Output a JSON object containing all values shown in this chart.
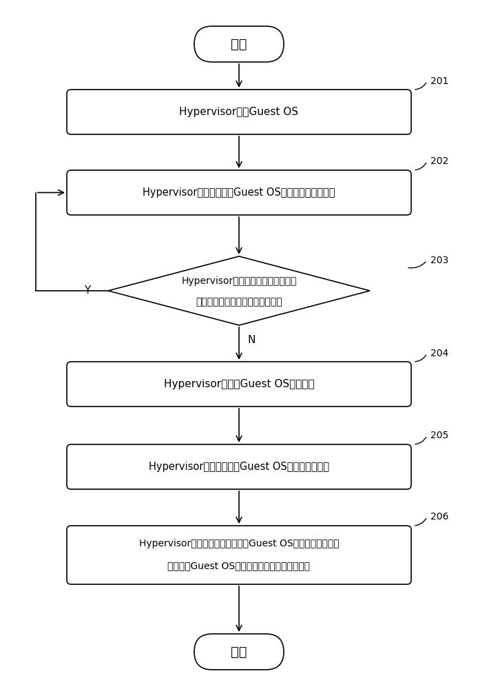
{
  "bg_color": "#ffffff",
  "start_text": "开始",
  "end_text": "结束",
  "box201_text": "Hypervisor启动Guest OS",
  "box202_text": "Hypervisor统计每个所述Guest OS所处核心的当前负载",
  "box203_line1": "Hypervisor查询负载表，判断当前负",
  "box203_line2": "载与核心的当前运行频率是否匹配",
  "box204_text": "Hypervisor向所述Guest OS发起投票",
  "box205_text": "Hypervisor接收每个所述Guest OS返回的当前票数",
  "box206_line1": "Hypervisor查询负载表，根据每个Guest OS返回的当前票数和",
  "box206_line2": "每个所述Guest OS所处核心的当前负载进行调频",
  "label_y": "Y",
  "label_n": "N",
  "tag201": "201",
  "tag202": "202",
  "tag203": "203",
  "tag204": "204",
  "tag205": "205",
  "tag206": "206"
}
